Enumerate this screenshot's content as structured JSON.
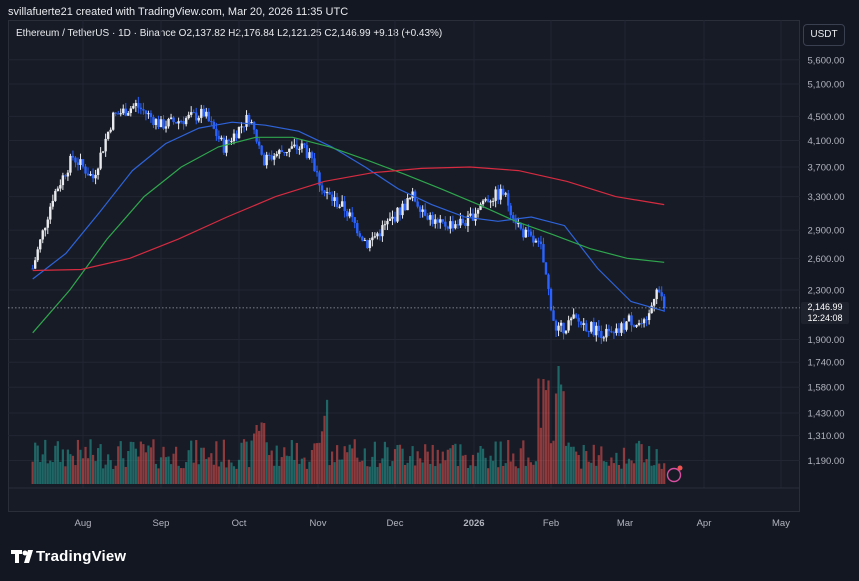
{
  "header": {
    "credit": "svillafuerte21 created with TradingView.com, Mar 20, 2026 11:35 UTC"
  },
  "legend": {
    "symbol": "Ethereum / TetherUS · 1D · Binance",
    "open": "O2,137.82",
    "high": "H2,176.84",
    "low": "L2,121.25",
    "close": "C2,146.99",
    "change": "+9.18 (+0.43%)"
  },
  "currency": "USDT",
  "last_price": {
    "value": "2,146.99",
    "countdown": "12:24:08"
  },
  "brand": "TradingView",
  "colors": {
    "background": "#131722",
    "up": "#e8eaed",
    "down": "#2962ff",
    "ma50": "#2e63d9",
    "ma100": "#2fa64d",
    "ma200": "#d62b40",
    "vol_up": "#26a69a",
    "vol_down": "#ef5350"
  },
  "chart_data": {
    "type": "candlestick",
    "x_axis_labels": [
      "Aug",
      "Sep",
      "Oct",
      "Nov",
      "Dec",
      "2026",
      "Feb",
      "Mar",
      "Apr",
      "May"
    ],
    "y_axis_labels": [
      "5,600.00",
      "5,100.00",
      "4,500.00",
      "4,100.00",
      "3,700.00",
      "3,300.00",
      "2,900.00",
      "2,600.00",
      "2,300.00",
      "1,900.00",
      "1,740.00",
      "1,580.00",
      "1,430.00",
      "1,310.00",
      "1,190.00"
    ],
    "y_scale": "log",
    "y_range": [
      1150,
      5900
    ],
    "series": [
      {
        "name": "",
        "type": "close-path",
        "dates": [
          "2025-07-12",
          "2025-07-20",
          "2025-07-28",
          "2025-08-05",
          "2025-08-13",
          "2025-08-22",
          "2025-09-01",
          "2025-09-10",
          "2025-09-18",
          "2025-09-26",
          "2025-10-06",
          "2025-10-12",
          "2025-10-20",
          "2025-10-28",
          "2025-11-05",
          "2025-11-13",
          "2025-11-22",
          "2025-12-01",
          "2025-12-10",
          "2025-12-20",
          "2026-01-01",
          "2026-01-07",
          "2026-01-15",
          "2026-01-22",
          "2026-01-30",
          "2026-02-05",
          "2026-02-12",
          "2026-02-20",
          "2026-02-28",
          "2026-03-06",
          "2026-03-13",
          "2026-03-17",
          "2026-03-20"
        ],
        "values": [
          2500,
          3300,
          3850,
          3550,
          4500,
          4700,
          4350,
          4450,
          4550,
          4000,
          4500,
          3800,
          3950,
          4000,
          3350,
          3150,
          2750,
          3000,
          3300,
          2950,
          3000,
          3250,
          3350,
          2900,
          2700,
          1950,
          2050,
          1980,
          1920,
          2050,
          2000,
          2350,
          2147
        ]
      },
      {
        "name": "",
        "type": "ma50",
        "values": [
          2400,
          2650,
          3100,
          3650,
          4050,
          4300,
          4400,
          4350,
          4250,
          4000,
          3700,
          3400,
          3200,
          3050,
          3000,
          3050,
          2950,
          2500,
          2200,
          2120
        ]
      },
      {
        "name": "",
        "type": "ma100",
        "values": [
          1950,
          2300,
          2800,
          3300,
          3700,
          4000,
          4150,
          4150,
          4000,
          3800,
          3600,
          3400,
          3200,
          3000,
          2850,
          2700,
          2600,
          2560
        ]
      },
      {
        "name": "",
        "type": "ma200",
        "values": [
          2480,
          2490,
          2600,
          2800,
          3050,
          3300,
          3500,
          3620,
          3680,
          3700,
          3650,
          3500,
          3300,
          3200
        ]
      }
    ]
  }
}
